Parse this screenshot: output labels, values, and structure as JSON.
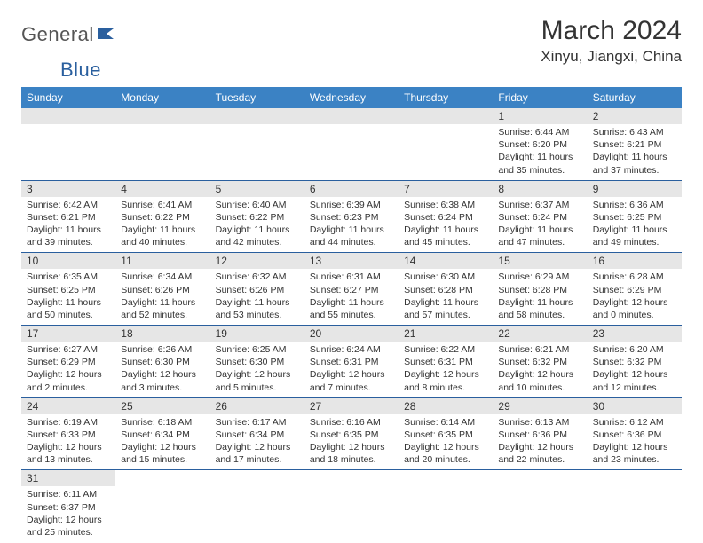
{
  "logo": {
    "part1": "General",
    "part2": "Blue"
  },
  "title": "March 2024",
  "location": "Xinyu, Jiangxi, China",
  "header_bg_color": "#3b82c4",
  "daynum_bg_color": "#e6e6e6",
  "row_border_color": "#2a5f9e",
  "weekdays": [
    "Sunday",
    "Monday",
    "Tuesday",
    "Wednesday",
    "Thursday",
    "Friday",
    "Saturday"
  ],
  "weeks": [
    [
      null,
      null,
      null,
      null,
      null,
      {
        "n": "1",
        "sr": "Sunrise: 6:44 AM",
        "ss": "Sunset: 6:20 PM",
        "dl": "Daylight: 11 hours and 35 minutes."
      },
      {
        "n": "2",
        "sr": "Sunrise: 6:43 AM",
        "ss": "Sunset: 6:21 PM",
        "dl": "Daylight: 11 hours and 37 minutes."
      }
    ],
    [
      {
        "n": "3",
        "sr": "Sunrise: 6:42 AM",
        "ss": "Sunset: 6:21 PM",
        "dl": "Daylight: 11 hours and 39 minutes."
      },
      {
        "n": "4",
        "sr": "Sunrise: 6:41 AM",
        "ss": "Sunset: 6:22 PM",
        "dl": "Daylight: 11 hours and 40 minutes."
      },
      {
        "n": "5",
        "sr": "Sunrise: 6:40 AM",
        "ss": "Sunset: 6:22 PM",
        "dl": "Daylight: 11 hours and 42 minutes."
      },
      {
        "n": "6",
        "sr": "Sunrise: 6:39 AM",
        "ss": "Sunset: 6:23 PM",
        "dl": "Daylight: 11 hours and 44 minutes."
      },
      {
        "n": "7",
        "sr": "Sunrise: 6:38 AM",
        "ss": "Sunset: 6:24 PM",
        "dl": "Daylight: 11 hours and 45 minutes."
      },
      {
        "n": "8",
        "sr": "Sunrise: 6:37 AM",
        "ss": "Sunset: 6:24 PM",
        "dl": "Daylight: 11 hours and 47 minutes."
      },
      {
        "n": "9",
        "sr": "Sunrise: 6:36 AM",
        "ss": "Sunset: 6:25 PM",
        "dl": "Daylight: 11 hours and 49 minutes."
      }
    ],
    [
      {
        "n": "10",
        "sr": "Sunrise: 6:35 AM",
        "ss": "Sunset: 6:25 PM",
        "dl": "Daylight: 11 hours and 50 minutes."
      },
      {
        "n": "11",
        "sr": "Sunrise: 6:34 AM",
        "ss": "Sunset: 6:26 PM",
        "dl": "Daylight: 11 hours and 52 minutes."
      },
      {
        "n": "12",
        "sr": "Sunrise: 6:32 AM",
        "ss": "Sunset: 6:26 PM",
        "dl": "Daylight: 11 hours and 53 minutes."
      },
      {
        "n": "13",
        "sr": "Sunrise: 6:31 AM",
        "ss": "Sunset: 6:27 PM",
        "dl": "Daylight: 11 hours and 55 minutes."
      },
      {
        "n": "14",
        "sr": "Sunrise: 6:30 AM",
        "ss": "Sunset: 6:28 PM",
        "dl": "Daylight: 11 hours and 57 minutes."
      },
      {
        "n": "15",
        "sr": "Sunrise: 6:29 AM",
        "ss": "Sunset: 6:28 PM",
        "dl": "Daylight: 11 hours and 58 minutes."
      },
      {
        "n": "16",
        "sr": "Sunrise: 6:28 AM",
        "ss": "Sunset: 6:29 PM",
        "dl": "Daylight: 12 hours and 0 minutes."
      }
    ],
    [
      {
        "n": "17",
        "sr": "Sunrise: 6:27 AM",
        "ss": "Sunset: 6:29 PM",
        "dl": "Daylight: 12 hours and 2 minutes."
      },
      {
        "n": "18",
        "sr": "Sunrise: 6:26 AM",
        "ss": "Sunset: 6:30 PM",
        "dl": "Daylight: 12 hours and 3 minutes."
      },
      {
        "n": "19",
        "sr": "Sunrise: 6:25 AM",
        "ss": "Sunset: 6:30 PM",
        "dl": "Daylight: 12 hours and 5 minutes."
      },
      {
        "n": "20",
        "sr": "Sunrise: 6:24 AM",
        "ss": "Sunset: 6:31 PM",
        "dl": "Daylight: 12 hours and 7 minutes."
      },
      {
        "n": "21",
        "sr": "Sunrise: 6:22 AM",
        "ss": "Sunset: 6:31 PM",
        "dl": "Daylight: 12 hours and 8 minutes."
      },
      {
        "n": "22",
        "sr": "Sunrise: 6:21 AM",
        "ss": "Sunset: 6:32 PM",
        "dl": "Daylight: 12 hours and 10 minutes."
      },
      {
        "n": "23",
        "sr": "Sunrise: 6:20 AM",
        "ss": "Sunset: 6:32 PM",
        "dl": "Daylight: 12 hours and 12 minutes."
      }
    ],
    [
      {
        "n": "24",
        "sr": "Sunrise: 6:19 AM",
        "ss": "Sunset: 6:33 PM",
        "dl": "Daylight: 12 hours and 13 minutes."
      },
      {
        "n": "25",
        "sr": "Sunrise: 6:18 AM",
        "ss": "Sunset: 6:34 PM",
        "dl": "Daylight: 12 hours and 15 minutes."
      },
      {
        "n": "26",
        "sr": "Sunrise: 6:17 AM",
        "ss": "Sunset: 6:34 PM",
        "dl": "Daylight: 12 hours and 17 minutes."
      },
      {
        "n": "27",
        "sr": "Sunrise: 6:16 AM",
        "ss": "Sunset: 6:35 PM",
        "dl": "Daylight: 12 hours and 18 minutes."
      },
      {
        "n": "28",
        "sr": "Sunrise: 6:14 AM",
        "ss": "Sunset: 6:35 PM",
        "dl": "Daylight: 12 hours and 20 minutes."
      },
      {
        "n": "29",
        "sr": "Sunrise: 6:13 AM",
        "ss": "Sunset: 6:36 PM",
        "dl": "Daylight: 12 hours and 22 minutes."
      },
      {
        "n": "30",
        "sr": "Sunrise: 6:12 AM",
        "ss": "Sunset: 6:36 PM",
        "dl": "Daylight: 12 hours and 23 minutes."
      }
    ],
    [
      {
        "n": "31",
        "sr": "Sunrise: 6:11 AM",
        "ss": "Sunset: 6:37 PM",
        "dl": "Daylight: 12 hours and 25 minutes."
      },
      null,
      null,
      null,
      null,
      null,
      null
    ]
  ]
}
